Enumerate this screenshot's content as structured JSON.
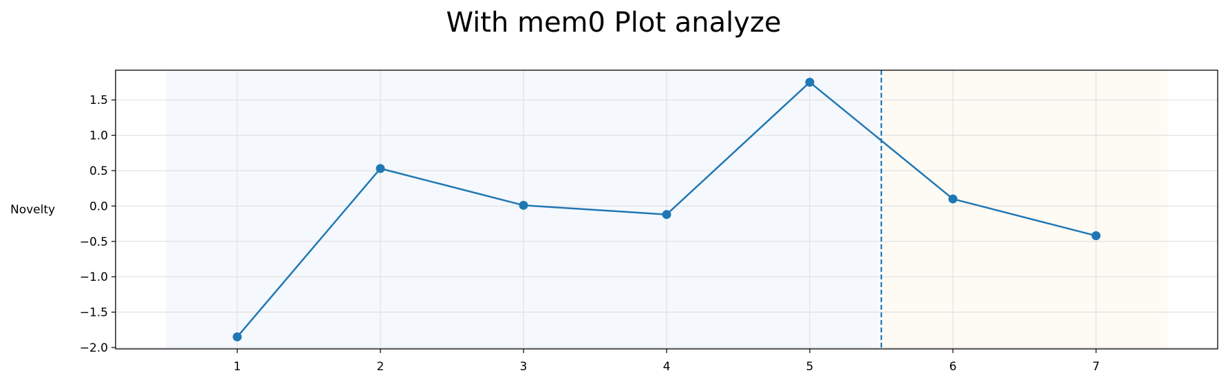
{
  "chart_data": {
    "type": "line",
    "title": "With mem0 Plot analyze",
    "xlabel": "",
    "ylabel": "Novelty",
    "x": [
      1,
      2,
      3,
      4,
      5,
      6,
      7
    ],
    "series": [
      {
        "values": [
          -1.85,
          0.53,
          0.01,
          -0.12,
          1.75,
          0.1,
          -0.42
        ],
        "color": "#1f77b4",
        "marker": "circle"
      }
    ],
    "xlim": [
      0.15,
      7.85
    ],
    "ylim": [
      -2.02,
      1.92
    ],
    "x_ticks": [
      1,
      2,
      3,
      4,
      5,
      6,
      7
    ],
    "y_ticks": [
      1.5,
      1.0,
      0.5,
      0.0,
      -0.5,
      -1.0,
      -1.5,
      -2.0
    ],
    "y_tick_labels": [
      "1.5",
      "1.0",
      "0.5",
      "0.0",
      "−0.5",
      "−1.0",
      "−1.5",
      "−2.0"
    ],
    "grid": true,
    "shaded_regions": [
      {
        "x_start": 0.5,
        "x_end": 5.5,
        "color": "#f5f8fc"
      },
      {
        "x_start": 5.5,
        "x_end": 7.5,
        "color": "#fefaf4"
      }
    ],
    "vertical_line": {
      "x": 5.5,
      "style": "dashed",
      "color": "#1f77b4"
    }
  }
}
